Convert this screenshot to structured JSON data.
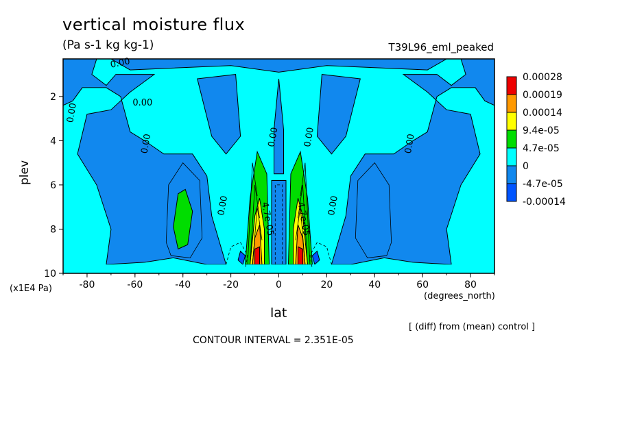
{
  "chart_data": {
    "type": "heatmap",
    "title": "vertical moisture flux",
    "units": "(Pa s-1 kg kg-1)",
    "run_label": "T39L96_eml_peaked",
    "xlabel": "lat",
    "x_units": "(degrees_north)",
    "ylabel": "plev",
    "y_units": "(x1E4 Pa)",
    "xlim": [
      -90,
      90
    ],
    "ylim": [
      10,
      0.3
    ],
    "x_ticks": [
      -80,
      -60,
      -40,
      -20,
      0,
      20,
      40,
      60,
      80
    ],
    "y_ticks": [
      2,
      4,
      6,
      8,
      10
    ],
    "colorbar": {
      "labels": [
        "0.00028",
        "0.00019",
        "0.00014",
        "9.4e-05",
        "4.7e-05",
        "0",
        "-4.7e-05",
        "-0.00014"
      ],
      "colors": [
        "#ee0000",
        "#ff9900",
        "#ffff00",
        "#00dd00",
        "#00ffff",
        "#1188ee",
        "#0055ff"
      ]
    },
    "contour_labels": [
      "0.00",
      "0.00",
      "0.00",
      "0.00",
      "0.00",
      "0.00",
      "0.00",
      "0.00",
      "0.00",
      "4.7e-05",
      "4.7e-05"
    ],
    "annotation": "[ (diff) from (mean) control ]",
    "contour_interval": "CONTOUR INTERVAL = 2.351E-05",
    "grid": false
  }
}
